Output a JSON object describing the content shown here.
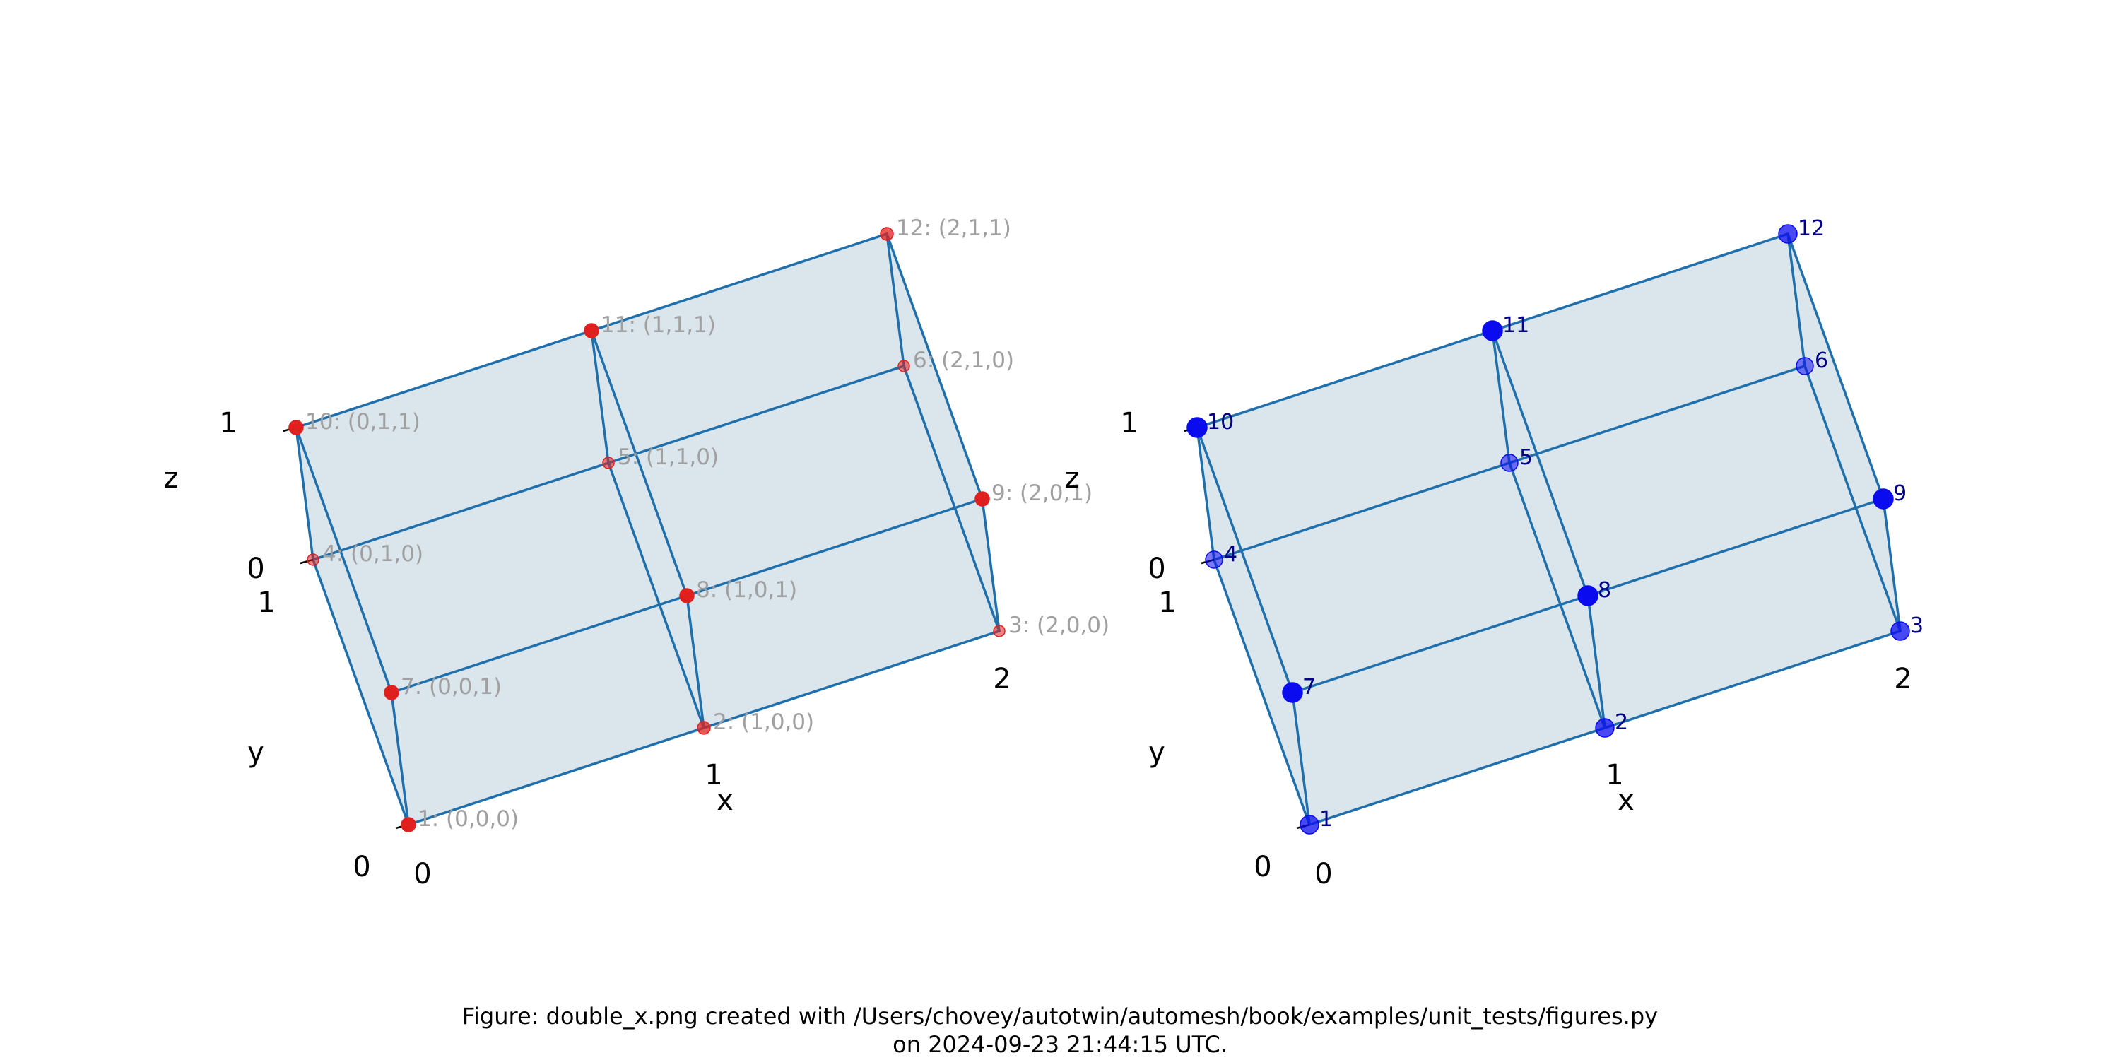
{
  "colors": {
    "edge": "#1f6fad",
    "face": "#b4c8d8",
    "left_marker": "#e0201f",
    "left_label": "#a0a0a0",
    "right_marker": "#0b0bf0",
    "right_label": "#00008b",
    "axis_text": "#000000"
  },
  "caption": {
    "line1": "Figure: double_x.png created with /Users/chovey/autotwin/automesh/book/examples/unit_tests/figures.py",
    "line2": "on 2024-09-23 21:44:15 UTC."
  },
  "panels": [
    {
      "id": "left",
      "label_style": "coords",
      "nodes": [
        {
          "id": 1,
          "coord": [
            0,
            0,
            0
          ],
          "label": "1: (0,0,0)",
          "depth": "front"
        },
        {
          "id": 2,
          "coord": [
            1,
            0,
            0
          ],
          "label": "2: (1,0,0)",
          "depth": "mid"
        },
        {
          "id": 3,
          "coord": [
            2,
            0,
            0
          ],
          "label": "3: (2,0,0)",
          "depth": "back"
        },
        {
          "id": 4,
          "coord": [
            0,
            1,
            0
          ],
          "label": "4: (0,1,0)",
          "depth": "back"
        },
        {
          "id": 5,
          "coord": [
            1,
            1,
            0
          ],
          "label": "5: (1,1,0)",
          "depth": "back"
        },
        {
          "id": 6,
          "coord": [
            2,
            1,
            0
          ],
          "label": "6: (2,1,0)",
          "depth": "back"
        },
        {
          "id": 7,
          "coord": [
            0,
            0,
            1
          ],
          "label": "7: (0,0,1)",
          "depth": "front"
        },
        {
          "id": 8,
          "coord": [
            1,
            0,
            1
          ],
          "label": "8: (1,0,1)",
          "depth": "front"
        },
        {
          "id": 9,
          "coord": [
            2,
            0,
            1
          ],
          "label": "9: (2,0,1)",
          "depth": "front"
        },
        {
          "id": 10,
          "coord": [
            0,
            1,
            1
          ],
          "label": "10: (0,1,1)",
          "depth": "front"
        },
        {
          "id": 11,
          "coord": [
            1,
            1,
            1
          ],
          "label": "11: (1,1,1)",
          "depth": "front"
        },
        {
          "id": 12,
          "coord": [
            2,
            1,
            1
          ],
          "label": "12: (2,1,1)",
          "depth": "mid"
        }
      ],
      "axes": {
        "x_label": "x",
        "y_label": "y",
        "z_label": "z",
        "x_ticks": [
          "0",
          "1",
          "2"
        ],
        "y_ticks": [
          "0",
          "1"
        ],
        "z_ticks": [
          "0",
          "1"
        ]
      }
    },
    {
      "id": "right",
      "label_style": "ids",
      "nodes": [
        {
          "id": 1,
          "coord": [
            0,
            0,
            0
          ],
          "label": "1",
          "depth": "mid"
        },
        {
          "id": 2,
          "coord": [
            1,
            0,
            0
          ],
          "label": "2",
          "depth": "mid"
        },
        {
          "id": 3,
          "coord": [
            2,
            0,
            0
          ],
          "label": "3",
          "depth": "mid"
        },
        {
          "id": 4,
          "coord": [
            0,
            1,
            0
          ],
          "label": "4",
          "depth": "back"
        },
        {
          "id": 5,
          "coord": [
            1,
            1,
            0
          ],
          "label": "5",
          "depth": "back"
        },
        {
          "id": 6,
          "coord": [
            2,
            1,
            0
          ],
          "label": "6",
          "depth": "back"
        },
        {
          "id": 7,
          "coord": [
            0,
            0,
            1
          ],
          "label": "7",
          "depth": "front"
        },
        {
          "id": 8,
          "coord": [
            1,
            0,
            1
          ],
          "label": "8",
          "depth": "front"
        },
        {
          "id": 9,
          "coord": [
            2,
            0,
            1
          ],
          "label": "9",
          "depth": "front"
        },
        {
          "id": 10,
          "coord": [
            0,
            1,
            1
          ],
          "label": "10",
          "depth": "front"
        },
        {
          "id": 11,
          "coord": [
            1,
            1,
            1
          ],
          "label": "11",
          "depth": "front"
        },
        {
          "id": 12,
          "coord": [
            2,
            1,
            1
          ],
          "label": "12",
          "depth": "mid"
        }
      ],
      "axes": {
        "x_label": "x",
        "y_label": "y",
        "z_label": "z",
        "x_ticks": [
          "0",
          "1",
          "2"
        ],
        "y_ticks": [
          "0",
          "1"
        ],
        "z_ticks": [
          "0",
          "1"
        ]
      }
    }
  ]
}
